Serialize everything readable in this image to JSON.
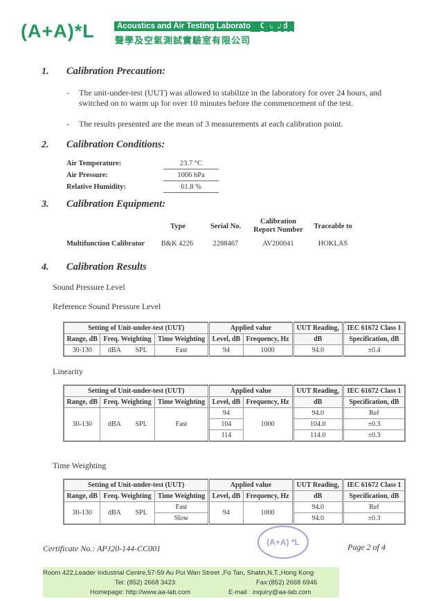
{
  "header": {
    "logo": "(A+A)*L",
    "lab_name_en": "Acoustics and Air Testing Laboratory Co. Ltd.",
    "lab_name_zh": "聲學及空氣測試實驗室有限公司",
    "brand_color": "#1e9a5a"
  },
  "sections": {
    "s1": {
      "num": "1.",
      "title": "Calibration Precaution:",
      "bullets": [
        "The unit-under-test (UUT) was allowed to stabilize in the laboratory for over 24 hours, and switched on to warm up for over 10 minutes before the commencement of the test.",
        "The results presented are the mean of 3 measurements at each calibration point."
      ]
    },
    "s2": {
      "num": "2.",
      "title": "Calibration Conditions:",
      "rows": [
        {
          "label": "Air Temperature:",
          "value": "23.7 °C"
        },
        {
          "label": "Air Pressure:",
          "value": "1006 hPa"
        },
        {
          "label": "Relative Humidity:",
          "value": "61.8 %"
        }
      ]
    },
    "s3": {
      "num": "3.",
      "title": "Calibration Equipment:",
      "headers": [
        "Type",
        "Serial No.",
        "Calibration Report Number",
        "Traceable to"
      ],
      "row": {
        "name": "Multifunction Calibrator",
        "type": "B&K 4226",
        "serial": "2288467",
        "report": "AV200041",
        "traceable": "HOKLAS"
      }
    },
    "s4": {
      "num": "4.",
      "title": "Calibration Results",
      "subtitle": "Sound Pressure Level",
      "ref_title": "Reference Sound Pressure Level",
      "lin_title": "Linearity",
      "tw_title": "Time Weighting"
    }
  },
  "table_headers": {
    "setting": "Setting of Unit-under-test (UUT)",
    "applied": "Applied value",
    "uut_reading": "UUT Reading,",
    "iec": "IEC 61672 Class 1",
    "range": "Range, dB",
    "freq_w": "Freq. Weighting",
    "time_w": "Time Weighting",
    "level": "Level, dB",
    "freq_hz": "Frequency, Hz",
    "db": "dB",
    "spec": "Specification, dB"
  },
  "ref_table": {
    "range": "30-130",
    "fw1": "dBA",
    "fw2": "SPL",
    "tw": "Fast",
    "level": "94",
    "freq": "1000",
    "reading": "94.0",
    "spec": "±0.4"
  },
  "lin_table": {
    "range": "30-130",
    "fw1": "dBA",
    "fw2": "SPL",
    "tw": "Fast",
    "freq": "1000",
    "rows": [
      {
        "level": "94",
        "reading": "94.0",
        "spec": "Ref"
      },
      {
        "level": "104",
        "reading": "104.0",
        "spec": "±0.3"
      },
      {
        "level": "114",
        "reading": "114.0",
        "spec": "±0.3"
      }
    ]
  },
  "tw_table": {
    "range": "30-130",
    "fw1": "dBA",
    "fw2": "SPL",
    "level": "94",
    "freq": "1000",
    "rows": [
      {
        "tw": "Fast",
        "reading": "94.0",
        "spec": "Ref"
      },
      {
        "tw": "Slow",
        "reading": "94.0",
        "spec": "±0.3"
      }
    ]
  },
  "footer": {
    "certificate": "Certificate No.: APJ20-144-CC001",
    "page": "Page 2 of 4",
    "stamp": "(A+A) *L",
    "address": "Room 422,Leader Industrial Centre,57-59 Au Pui Wan Street ,Fo Tan, Shatin,N.T.,Hong Kong",
    "tel": "Tel: (852) 2668 3423",
    "fax": "Fax:(852) 2668 6946",
    "homepage": "Homepage: http://www.aa-lab.com",
    "email": "E-mail : inquiry@aa-lab.com"
  }
}
